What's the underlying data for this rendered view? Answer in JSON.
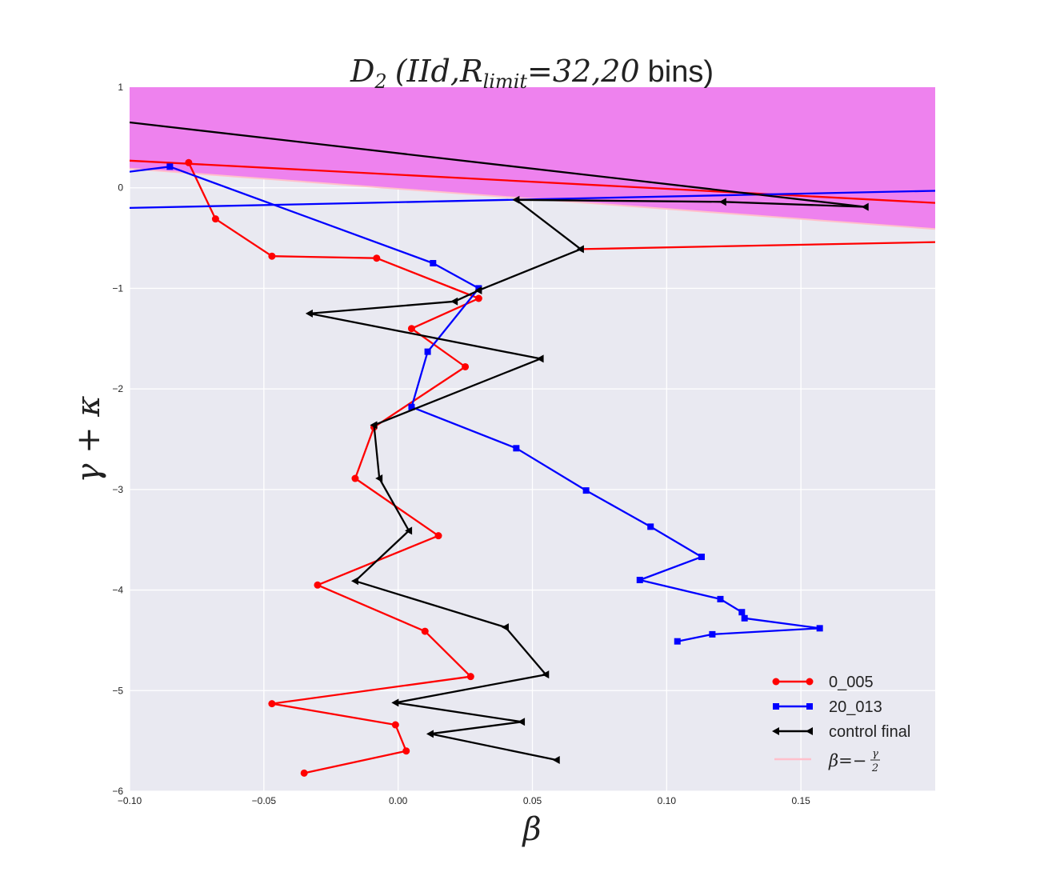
{
  "chart_data": {
    "type": "line",
    "title": {
      "math_var": "D",
      "math_sub": "2",
      "open_paren": "(",
      "math_params": "IId,R",
      "math_params_sub": "limit",
      "eq_value": "=32,20",
      "bins_text": "bins)"
    },
    "xlabel": "β",
    "ylabel": "γ + κ",
    "xlim": [
      -0.1,
      0.2
    ],
    "ylim": [
      -6,
      1
    ],
    "xticks": [
      {
        "value": -0.1,
        "label": "−0.10"
      },
      {
        "value": -0.05,
        "label": "−0.05"
      },
      {
        "value": 0.0,
        "label": "0.00"
      },
      {
        "value": 0.05,
        "label": "0.05"
      },
      {
        "value": 0.1,
        "label": "0.10"
      },
      {
        "value": 0.15,
        "label": "0.15"
      }
    ],
    "yticks": [
      {
        "value": 1,
        "label": "1"
      },
      {
        "value": 0,
        "label": "0"
      },
      {
        "value": -1,
        "label": "−1"
      },
      {
        "value": -2,
        "label": "−2"
      },
      {
        "value": -3,
        "label": "−3"
      },
      {
        "value": -4,
        "label": "−4"
      },
      {
        "value": -5,
        "label": "−5"
      },
      {
        "value": -6,
        "label": "−6"
      }
    ],
    "grid": true,
    "background_color": "#e9e9f1",
    "shaded_region": {
      "color": "#ee82ee",
      "lower_boundary": "beta = -gamma/2",
      "points": [
        [
          -0.1,
          0.19
        ],
        [
          0.2,
          -0.41
        ],
        [
          0.2,
          1
        ],
        [
          -0.1,
          1
        ]
      ]
    },
    "boundary_line": {
      "name_var": "β",
      "name_eq": "=−",
      "name_num": "γ",
      "name_den": "2",
      "color": "#ffc0cb",
      "points": [
        [
          -0.1,
          0.19
        ],
        [
          0.2,
          -0.41
        ]
      ]
    },
    "series": [
      {
        "name": "0_005",
        "color": "#ff0000",
        "marker": "circle",
        "points": [
          [
            -0.078,
            0.25
          ],
          [
            -0.068,
            -0.31
          ],
          [
            -0.047,
            -0.68
          ],
          [
            -0.008,
            -0.7
          ],
          [
            0.03,
            -1.1
          ],
          [
            0.005,
            -1.4
          ],
          [
            0.025,
            -1.78
          ],
          [
            -0.009,
            -2.38
          ],
          [
            -0.016,
            -2.89
          ],
          [
            0.015,
            -3.46
          ],
          [
            -0.03,
            -3.95
          ],
          [
            0.01,
            -4.41
          ],
          [
            0.027,
            -4.86
          ],
          [
            -0.047,
            -5.13
          ],
          [
            -0.001,
            -5.34
          ],
          [
            0.003,
            -5.6
          ],
          [
            -0.035,
            -5.82
          ]
        ],
        "fit_line": [
          [
            -0.1,
            0.27
          ],
          [
            0.2,
            -0.15
          ]
        ],
        "fit_line2": [
          [
            0.068,
            -0.61
          ],
          [
            0.2,
            -0.54
          ]
        ]
      },
      {
        "name": "20_013",
        "color": "#0000ff",
        "marker": "square",
        "points": [
          [
            -0.085,
            0.21
          ],
          [
            0.013,
            -0.75
          ],
          [
            0.03,
            -1.0
          ],
          [
            0.011,
            -1.63
          ],
          [
            0.005,
            -2.18
          ],
          [
            0.044,
            -2.59
          ],
          [
            0.07,
            -3.01
          ],
          [
            0.094,
            -3.37
          ],
          [
            0.113,
            -3.67
          ],
          [
            0.09,
            -3.9
          ],
          [
            0.12,
            -4.09
          ],
          [
            0.128,
            -4.22
          ],
          [
            0.129,
            -4.28
          ],
          [
            0.157,
            -4.38
          ],
          [
            0.117,
            -4.44
          ],
          [
            0.104,
            -4.51
          ]
        ],
        "fit_line": [
          [
            -0.1,
            0.16
          ],
          [
            -0.085,
            0.21
          ]
        ],
        "fit_line2": [
          [
            -0.1,
            -0.2
          ],
          [
            0.2,
            -0.03
          ]
        ]
      },
      {
        "name": "control final",
        "color": "#000000",
        "marker": "triangle-left",
        "points": [
          [
            0.174,
            -0.19
          ],
          [
            0.121,
            -0.14
          ],
          [
            0.044,
            -0.12
          ],
          [
            0.068,
            -0.61
          ],
          [
            0.03,
            -1.02
          ],
          [
            0.021,
            -1.13
          ],
          [
            -0.033,
            -1.25
          ],
          [
            0.053,
            -1.7
          ],
          [
            -0.009,
            -2.36
          ],
          [
            -0.007,
            -2.89
          ],
          [
            0.004,
            -3.41
          ],
          [
            -0.016,
            -3.91
          ],
          [
            0.04,
            -4.37
          ],
          [
            0.055,
            -4.84
          ],
          [
            -0.001,
            -5.12
          ],
          [
            0.046,
            -5.31
          ],
          [
            0.012,
            -5.43
          ],
          [
            0.059,
            -5.69
          ]
        ],
        "fit_line": [
          [
            -0.1,
            0.65
          ],
          [
            0.174,
            -0.19
          ]
        ]
      }
    ],
    "legend": {
      "placement": "lower-right"
    }
  }
}
